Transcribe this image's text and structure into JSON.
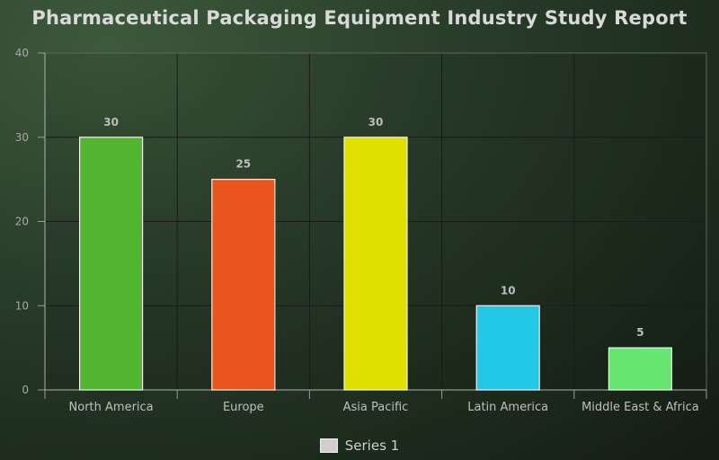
{
  "chart_data": {
    "type": "bar",
    "title": "Pharmaceutical Packaging Equipment Industry Study Report",
    "categories": [
      "North America",
      "Europe",
      "Asia Pacific",
      "Latin America",
      "Middle East & Africa"
    ],
    "series": [
      {
        "name": "Series 1",
        "values": [
          30,
          25,
          30,
          10,
          5
        ]
      }
    ],
    "bar_colors": [
      "#52b532",
      "#e8561e",
      "#e0e000",
      "#22c8e6",
      "#66e670"
    ],
    "ylim": [
      0,
      40
    ],
    "yticks": [
      0,
      10,
      20,
      30,
      40
    ],
    "xlabel": "",
    "ylabel": "",
    "grid": true,
    "data_labels": true,
    "legend_position": "bottom"
  }
}
